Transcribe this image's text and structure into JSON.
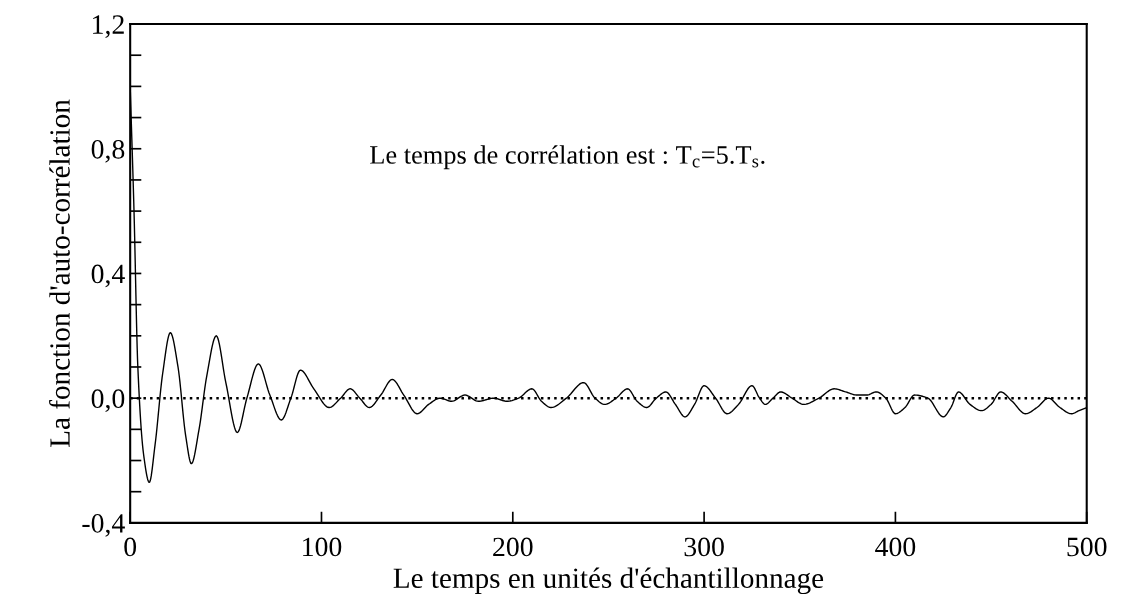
{
  "chart_data": {
    "type": "line",
    "xlabel": "Le temps en unités d'échantillonnage",
    "ylabel": "La fonction d'auto-corrélation",
    "annotations": [
      "Le temps de corrélation est : T$_{c}$=5.T$_{s}$."
    ],
    "xlim": [
      0,
      500
    ],
    "xticks": [
      0,
      100,
      200,
      300,
      400,
      500
    ],
    "ylim": [
      -0.4,
      1.2
    ],
    "yticks": [
      {
        "value": -0.4,
        "label": "-0,4"
      },
      {
        "value": -0.3,
        "label": null
      },
      {
        "value": -0.2,
        "label": null
      },
      {
        "value": -0.1,
        "label": null
      },
      {
        "value": 0,
        "label": "0,0"
      },
      {
        "value": 0.1,
        "label": null
      },
      {
        "value": 0.2,
        "label": null
      },
      {
        "value": 0.3,
        "label": null
      },
      {
        "value": 0.4,
        "label": "0,4"
      },
      {
        "value": 0.5,
        "label": null
      },
      {
        "value": 0.6,
        "label": null
      },
      {
        "value": 0.7,
        "label": null
      },
      {
        "value": 0.8,
        "label": "0,8"
      },
      {
        "value": 0.9,
        "label": null
      },
      {
        "value": 1.0,
        "label": null
      },
      {
        "value": 1.1,
        "label": null
      },
      {
        "value": 1.2,
        "label": "1,2"
      }
    ],
    "grid": false,
    "marker": "none",
    "line_style": "solid",
    "ref_lines": [
      {
        "axis": "y",
        "value": 0,
        "color": "#000000",
        "line_style": "dotted"
      }
    ],
    "series": [
      {
        "color": "#000000",
        "x": [
          0,
          2,
          4,
          7,
          10,
          13,
          17,
          21,
          25,
          29,
          32,
          36,
          40,
          45,
          50,
          56,
          61,
          67,
          73,
          79,
          84,
          89,
          96,
          104,
          110,
          115,
          120,
          125,
          131,
          137,
          143,
          150,
          156,
          162,
          168,
          175,
          182,
          190,
          197,
          203,
          210,
          215,
          220,
          228,
          237,
          243,
          248,
          254,
          260,
          265,
          270,
          275,
          280,
          285,
          290,
          295,
          300,
          306,
          312,
          318,
          325,
          329,
          332,
          336,
          340,
          346,
          352,
          360,
          368,
          374,
          380,
          385,
          390,
          395,
          400,
          405,
          410,
          417,
          425,
          429,
          433,
          439,
          445,
          450,
          455,
          461,
          468,
          474,
          480,
          486,
          492,
          496,
          500
        ],
        "values": [
          1.0,
          0.6,
          0.1,
          -0.18,
          -0.27,
          -0.15,
          0.08,
          0.21,
          0.1,
          -0.12,
          -0.21,
          -0.1,
          0.07,
          0.2,
          0.05,
          -0.11,
          0.0,
          0.11,
          0.01,
          -0.07,
          0.0,
          0.09,
          0.03,
          -0.03,
          0.0,
          0.03,
          0.0,
          -0.03,
          0.01,
          0.06,
          0.01,
          -0.05,
          -0.02,
          0.0,
          -0.01,
          0.01,
          -0.01,
          0.0,
          -0.01,
          0.0,
          0.03,
          -0.01,
          -0.03,
          0.0,
          0.05,
          0.0,
          -0.02,
          0.0,
          0.03,
          -0.01,
          -0.03,
          0.0,
          0.02,
          -0.02,
          -0.06,
          -0.02,
          0.04,
          0.0,
          -0.05,
          -0.02,
          0.04,
          0.0,
          -0.02,
          0.0,
          0.02,
          0.0,
          -0.02,
          0.0,
          0.03,
          0.02,
          0.01,
          0.01,
          0.02,
          0.0,
          -0.05,
          -0.03,
          0.01,
          0.0,
          -0.06,
          -0.03,
          0.02,
          -0.02,
          -0.04,
          -0.02,
          0.02,
          -0.01,
          -0.05,
          -0.03,
          0.0,
          -0.03,
          -0.05,
          -0.04,
          -0.03
        ]
      }
    ]
  }
}
